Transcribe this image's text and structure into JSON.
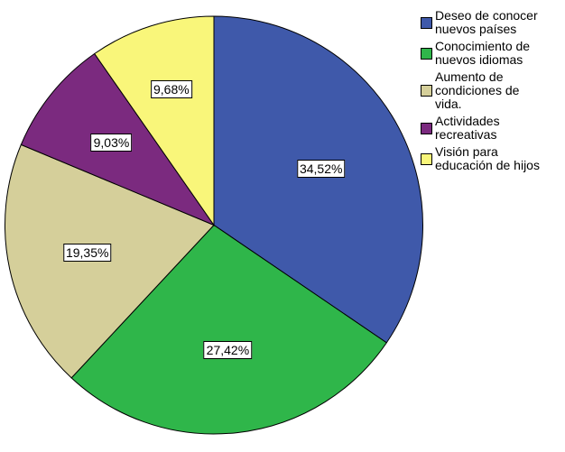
{
  "chart_data": {
    "type": "pie",
    "title": "",
    "categories": [
      "Deseo de conocer nuevos países",
      "Conocimiento de nuevos idiomas",
      "Aumento de condiciones de vida.",
      "Actividades recreativas",
      "Visión para educación de hijos"
    ],
    "values": [
      34.52,
      27.42,
      19.35,
      9.03,
      9.68
    ],
    "labels": [
      "34,52%",
      "27,42%",
      "19,35%",
      "9,03%",
      "9,68%"
    ],
    "colors": [
      "#3f59aa",
      "#2fb64a",
      "#d5cf9a",
      "#7b2a7f",
      "#f9f67a"
    ],
    "start_angle": "12 o'clock",
    "direction": "clockwise",
    "legend_position": "right"
  },
  "legend": {
    "items": [
      {
        "label": "Deseo de conocer\nnuevos países",
        "color": "#3f59aa"
      },
      {
        "label": "Conocimiento de\nnuevos idiomas",
        "color": "#2fb64a"
      },
      {
        "label": "Aumento de\ncondiciones de\nvida.",
        "color": "#d5cf9a"
      },
      {
        "label": "Actividades\nrecreativas",
        "color": "#7b2a7f"
      },
      {
        "label": "Visión para\neducación de hijos",
        "color": "#f9f67a"
      }
    ]
  },
  "slice_labels": [
    "34,52%",
    "27,42%",
    "19,35%",
    "9,03%",
    "9,68%"
  ]
}
